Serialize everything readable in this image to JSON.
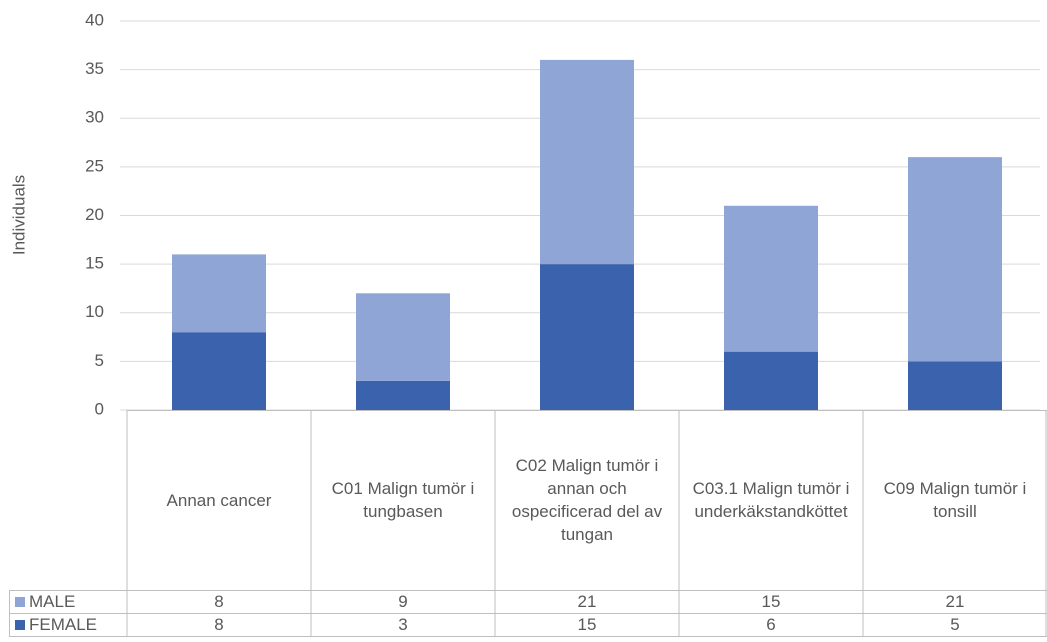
{
  "chart_data": {
    "type": "stacked_bar",
    "y_label": "Individuals",
    "categories": [
      "Annan cancer",
      "C01 Malign tumör i tungbasen",
      "C02 Malign tumör i annan och ospecificerad del av tungan",
      "C03.1 Malign tumör i underkäkstandköttet",
      "C09 Malign tumör i tonsill"
    ],
    "series": [
      {
        "name": "FEMALE",
        "color": "#3a62ad",
        "values": [
          8,
          3,
          15,
          6,
          5
        ]
      },
      {
        "name": "MALE",
        "color": "#8fa5d6",
        "values": [
          8,
          9,
          21,
          15,
          21
        ]
      }
    ],
    "ylim": [
      0,
      40
    ],
    "yticks": [
      0,
      5,
      10,
      15,
      20,
      25,
      30,
      35,
      40
    ],
    "grid": true
  }
}
